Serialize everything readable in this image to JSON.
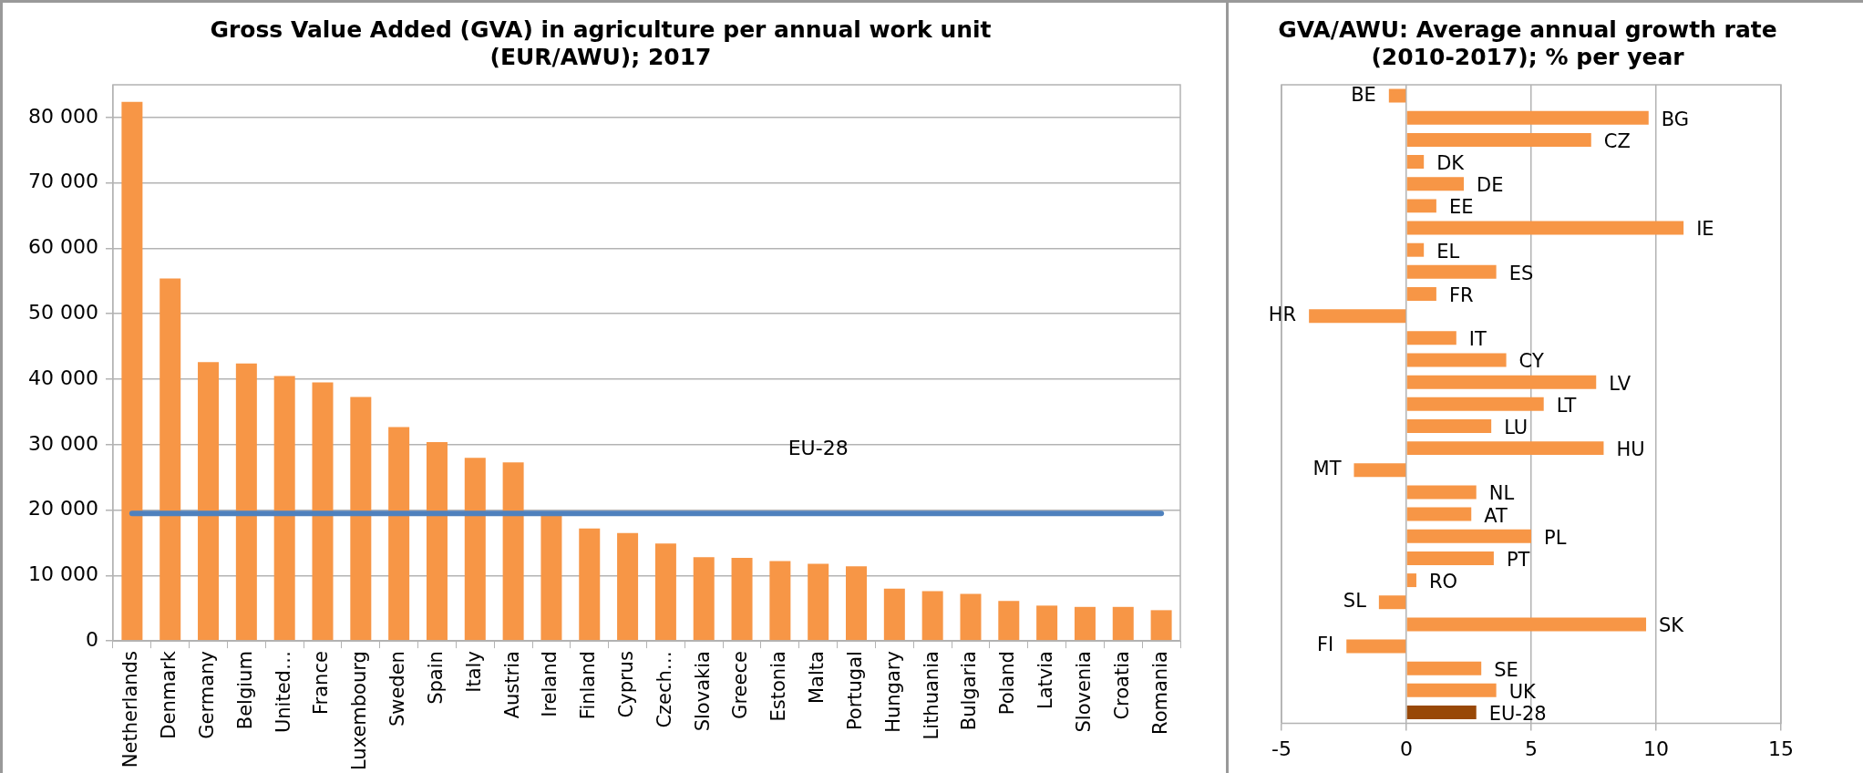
{
  "chart_data": [
    {
      "type": "bar",
      "title": "Gross Value Added (GVA) in agriculture per annual work unit\n(EUR/AWU); 2017",
      "categories": [
        "Netherlands",
        "Denmark",
        "Germany",
        "Belgium",
        "United…",
        "France",
        "Luxembourg",
        "Sweden",
        "Spain",
        "Italy",
        "Austria",
        "Ireland",
        "Finland",
        "Cyprus",
        "Czech…",
        "Slovakia",
        "Greece",
        "Estonia",
        "Malta",
        "Portugal",
        "Hungary",
        "Lithuania",
        "Bulgaria",
        "Poland",
        "Latvia",
        "Slovenia",
        "Croatia",
        "Romania"
      ],
      "series": [
        {
          "color": "#f79646",
          "values": [
            82400,
            55400,
            42600,
            42400,
            40500,
            39500,
            37300,
            32700,
            30400,
            28000,
            27300,
            19200,
            17200,
            16500,
            14900,
            12800,
            12700,
            12200,
            11800,
            11400,
            8000,
            7600,
            7200,
            6100,
            5400,
            5200,
            5200,
            4700
          ]
        },
        {
          "type": "line",
          "name": "EU-28",
          "color": "#4f81bd",
          "values": [
            19500,
            19500,
            19500,
            19500,
            19500,
            19500,
            19500,
            19500,
            19500,
            19500,
            19500,
            19500,
            19500,
            19500,
            19500,
            19500,
            19500,
            19500,
            19500,
            19500,
            19500,
            19500,
            19500,
            19500,
            19500,
            19500,
            19500,
            19500
          ]
        }
      ],
      "ylim": [
        0,
        85000
      ],
      "yticks": [
        {
          "value": 0,
          "label": "0"
        },
        {
          "value": 10000,
          "label": "10 000"
        },
        {
          "value": 20000,
          "label": "20 000"
        },
        {
          "value": 30000,
          "label": "30 000"
        },
        {
          "value": 40000,
          "label": "40 000"
        },
        {
          "value": 50000,
          "label": "50 000"
        },
        {
          "value": 60000,
          "label": "60 000"
        },
        {
          "value": 70000,
          "label": "70 000"
        },
        {
          "value": 80000,
          "label": "80 000"
        }
      ],
      "grid": "y"
    },
    {
      "type": "bar",
      "orientation": "horizontal",
      "title": "GVA/AWU: Average annual growth rate\n(2010-2017); % per year",
      "categories": [
        "BE",
        "BG",
        "CZ",
        "DK",
        "DE",
        "EE",
        "IE",
        "EL",
        "ES",
        "FR",
        "HR",
        "IT",
        "CY",
        "LV",
        "LT",
        "LU",
        "HU",
        "MT",
        "NL",
        "AT",
        "PL",
        "PT",
        "RO",
        "SL",
        "SK",
        "FI",
        "SE",
        "UK",
        "EU-28"
      ],
      "values": [
        -0.7,
        9.7,
        7.4,
        0.7,
        2.3,
        1.2,
        11.1,
        0.7,
        3.6,
        1.2,
        -3.9,
        2.0,
        4.0,
        7.6,
        5.5,
        3.4,
        7.9,
        -2.1,
        2.8,
        2.6,
        5.0,
        3.5,
        0.4,
        -1.1,
        9.6,
        -2.4,
        3.0,
        3.6,
        2.8
      ],
      "colors": [
        "#f79646",
        "#f79646",
        "#f79646",
        "#f79646",
        "#f79646",
        "#f79646",
        "#f79646",
        "#f79646",
        "#f79646",
        "#f79646",
        "#f79646",
        "#f79646",
        "#f79646",
        "#f79646",
        "#f79646",
        "#f79646",
        "#f79646",
        "#f79646",
        "#f79646",
        "#f79646",
        "#f79646",
        "#f79646",
        "#f79646",
        "#f79646",
        "#f79646",
        "#f79646",
        "#f79646",
        "#f79646",
        "#984807"
      ],
      "xlim": [
        -5,
        15
      ],
      "xticks": [
        -5,
        0,
        5,
        10,
        15
      ],
      "grid": "x"
    }
  ]
}
